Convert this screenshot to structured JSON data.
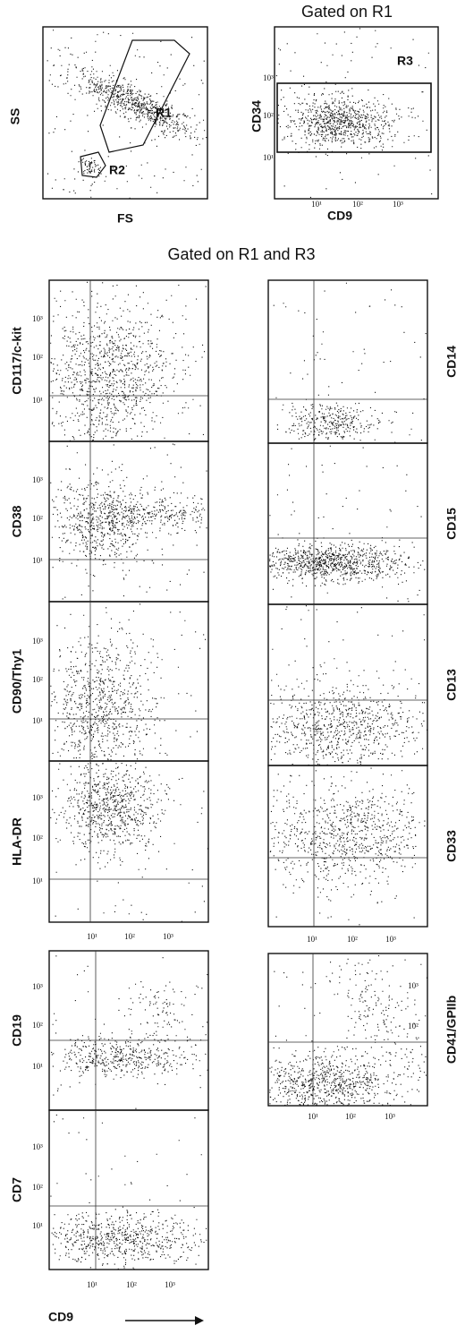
{
  "top": {
    "scatter": {
      "y_label": "SS",
      "x_label": "FS",
      "gates": [
        "R1",
        "R2"
      ]
    },
    "gated": {
      "title": "Gated on R1",
      "y_label": "CD34",
      "x_label": "CD9",
      "gate": "R3",
      "yticks": [
        "10³",
        "10²",
        "10¹"
      ],
      "xticks": [
        "10¹",
        "10²",
        "10³"
      ]
    }
  },
  "section_title": "Gated on R1 and R3",
  "panels": [
    {
      "label": "CD117/c-kit",
      "yticks": [
        "10³",
        "10²",
        "10¹"
      ]
    },
    {
      "label": "CD38",
      "yticks": [
        "10³",
        "10²",
        "10¹"
      ]
    },
    {
      "label": "CD90/Thy1",
      "yticks": [
        "10³",
        "10²",
        "10¹"
      ]
    },
    {
      "label": "HLA-DR",
      "yticks": [
        "10³",
        "10²",
        "10¹"
      ]
    },
    {
      "label": "CD14",
      "yticks": []
    },
    {
      "label": "CD15",
      "yticks": []
    },
    {
      "label": "CD13",
      "yticks": []
    },
    {
      "label": "CD33",
      "yticks": []
    },
    {
      "label": "CD41/GPIIb",
      "yticks": [
        "10³",
        "10²"
      ]
    },
    {
      "label": "CD19",
      "yticks": [
        "10³",
        "10²",
        "10¹"
      ]
    },
    {
      "label": "CD7",
      "yticks": [
        "10³",
        "10²",
        "10¹"
      ]
    }
  ],
  "xtick_rows": [
    [
      "10¹",
      "10²",
      "10³"
    ],
    [
      "10¹",
      "10²",
      "10³"
    ],
    [
      "10¹",
      "10²",
      "10³"
    ],
    [
      "10¹",
      "10²",
      "10³"
    ]
  ],
  "x_axis_label": "CD9"
}
